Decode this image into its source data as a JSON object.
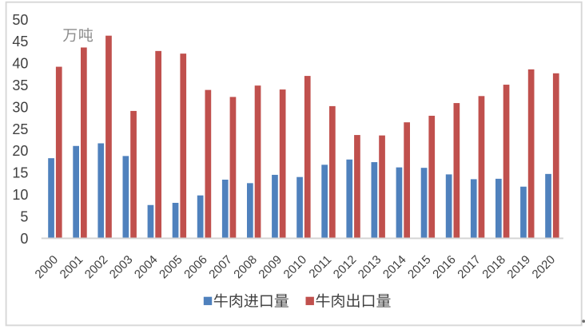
{
  "chart_data": {
    "type": "bar",
    "unit_label": "万吨",
    "categories": [
      "2000",
      "2001",
      "2002",
      "2003",
      "2004",
      "2005",
      "2006",
      "2007",
      "2008",
      "2009",
      "2010",
      "2011",
      "2012",
      "2013",
      "2014",
      "2015",
      "2016",
      "2017",
      "2018",
      "2019",
      "2020"
    ],
    "series": [
      {
        "name": "牛肉进口量",
        "color": "#4F81BD",
        "values": [
          18.3,
          21.1,
          21.7,
          18.8,
          7.6,
          8.1,
          9.8,
          13.4,
          12.6,
          14.5,
          14.0,
          16.8,
          18.0,
          17.4,
          16.2,
          16.1,
          14.6,
          13.5,
          13.6,
          11.8,
          14.7
        ]
      },
      {
        "name": "牛肉出口量",
        "color": "#C0504D",
        "values": [
          39.2,
          43.6,
          46.3,
          29.1,
          42.8,
          42.2,
          33.9,
          32.3,
          34.9,
          34.0,
          37.1,
          30.2,
          23.6,
          23.5,
          26.5,
          28.0,
          30.9,
          32.5,
          35.1,
          38.6,
          37.7
        ]
      }
    ],
    "y_axis": {
      "min": 0,
      "max": 50,
      "step": 5,
      "ticks": [
        "0",
        "5",
        "10",
        "15",
        "20",
        "25",
        "30",
        "35",
        "40",
        "45",
        "50"
      ]
    },
    "grid": "none",
    "legend_position": "bottom"
  },
  "legend": {
    "items": [
      {
        "label": "牛肉进口量",
        "color": "#4F81BD"
      },
      {
        "label": "牛肉出口量",
        "color": "#C0504D"
      }
    ]
  },
  "colors": {
    "import_series": "#4F81BD",
    "export_series": "#C0504D",
    "axis_text": "#404040",
    "unit_text": "#8C8C8C",
    "axis_line": "#D3D3D3",
    "chart_border": "#D7D7D7",
    "background": "#FFFFFF"
  }
}
